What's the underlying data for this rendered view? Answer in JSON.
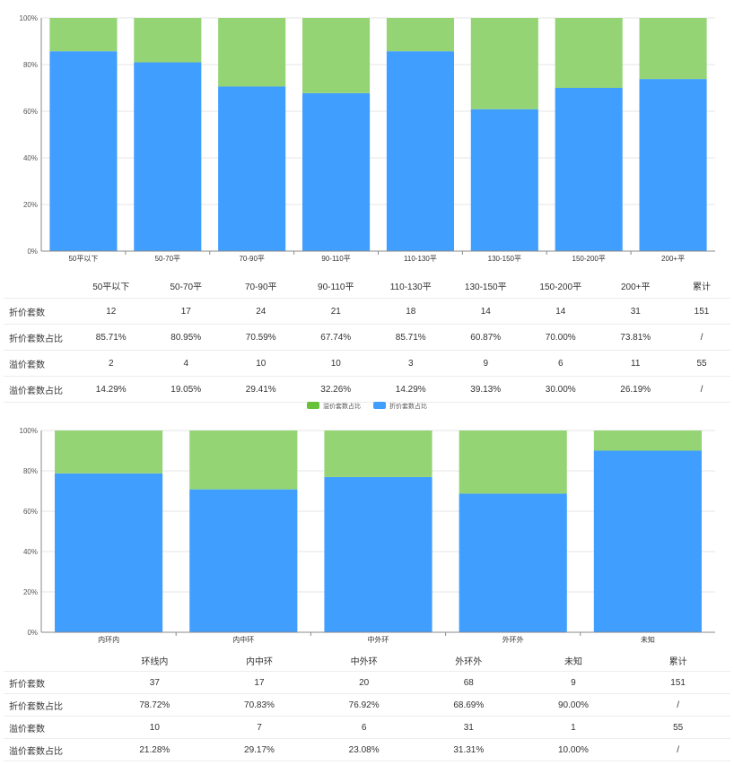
{
  "chart_data": [
    {
      "type": "bar",
      "stacked": true,
      "categories": [
        "50平以下",
        "50-70平",
        "70-90平",
        "90-110平",
        "110-130平",
        "130-150平",
        "150-200平",
        "200+平"
      ],
      "series": [
        {
          "name": "折价套数占比",
          "color": "#409EFF",
          "values": [
            85.71,
            80.95,
            70.59,
            67.74,
            85.71,
            60.87,
            70.0,
            73.81
          ]
        },
        {
          "name": "溢价套数占比",
          "color": "#95D475",
          "values": [
            14.29,
            19.05,
            29.41,
            32.26,
            14.29,
            39.13,
            30.0,
            26.19
          ]
        }
      ],
      "ylim": [
        0,
        100
      ],
      "yticks": [
        "0%",
        "20%",
        "40%",
        "60%",
        "80%",
        "100%"
      ],
      "grid": true
    },
    {
      "type": "bar",
      "stacked": true,
      "categories": [
        "内环内",
        "内中环",
        "中外环",
        "外环外",
        "未知"
      ],
      "series": [
        {
          "name": "折价套数占比",
          "color": "#409EFF",
          "values": [
            78.72,
            70.83,
            76.92,
            68.69,
            90.0
          ]
        },
        {
          "name": "溢价套数占比",
          "color": "#95D475",
          "values": [
            21.28,
            29.17,
            23.08,
            31.31,
            10.0
          ]
        }
      ],
      "ylim": [
        0,
        100
      ],
      "yticks": [
        "0%",
        "20%",
        "40%",
        "60%",
        "80%",
        "100%"
      ],
      "grid": true
    }
  ],
  "legend": {
    "items": [
      {
        "label": "溢价套数占比",
        "color": "#67C23A"
      },
      {
        "label": "折价套数占比",
        "color": "#409EFF"
      }
    ]
  },
  "table1": {
    "header": [
      "",
      "50平以下",
      "50-70平",
      "70-90平",
      "90-110平",
      "110-130平",
      "130-150平",
      "150-200平",
      "200+平",
      "累计"
    ],
    "rows": [
      [
        "折价套数",
        "12",
        "17",
        "24",
        "21",
        "18",
        "14",
        "14",
        "31",
        "151"
      ],
      [
        "折价套数占比",
        "85.71%",
        "80.95%",
        "70.59%",
        "67.74%",
        "85.71%",
        "60.87%",
        "70.00%",
        "73.81%",
        "/"
      ],
      [
        "溢价套数",
        "2",
        "4",
        "10",
        "10",
        "3",
        "9",
        "6",
        "11",
        "55"
      ],
      [
        "溢价套数占比",
        "14.29%",
        "19.05%",
        "29.41%",
        "32.26%",
        "14.29%",
        "39.13%",
        "30.00%",
        "26.19%",
        "/"
      ]
    ]
  },
  "table2": {
    "header": [
      "",
      "环线内",
      "内中环",
      "中外环",
      "外环外",
      "未知",
      "累计"
    ],
    "rows": [
      [
        "折价套数",
        "37",
        "17",
        "20",
        "68",
        "9",
        "151"
      ],
      [
        "折价套数占比",
        "78.72%",
        "70.83%",
        "76.92%",
        "68.69%",
        "90.00%",
        "/"
      ],
      [
        "溢价套数",
        "10",
        "7",
        "6",
        "31",
        "1",
        "55"
      ],
      [
        "溢价套数占比",
        "21.28%",
        "29.17%",
        "23.08%",
        "31.31%",
        "10.00%",
        "/"
      ]
    ]
  }
}
